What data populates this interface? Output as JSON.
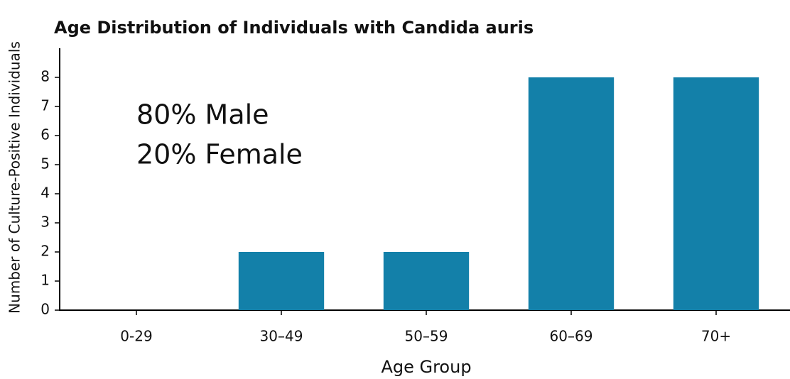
{
  "chart_data": {
    "type": "bar",
    "title": "Age Distribution of Individuals with Candida auris",
    "x_label": "Age Group",
    "y_label": "Number of Culture-Positive Individuals",
    "annotations": [
      "80% Male",
      "20% Female"
    ],
    "categories": [
      "0-29",
      "30–49",
      "50–59",
      "60–69",
      "70+"
    ],
    "values": [
      0,
      2,
      2,
      8,
      8
    ],
    "color": "#1380a9",
    "ylim": [
      0,
      9
    ],
    "yticks": [
      0,
      1,
      2,
      3,
      4,
      5,
      6,
      7,
      8
    ],
    "grid": false
  }
}
